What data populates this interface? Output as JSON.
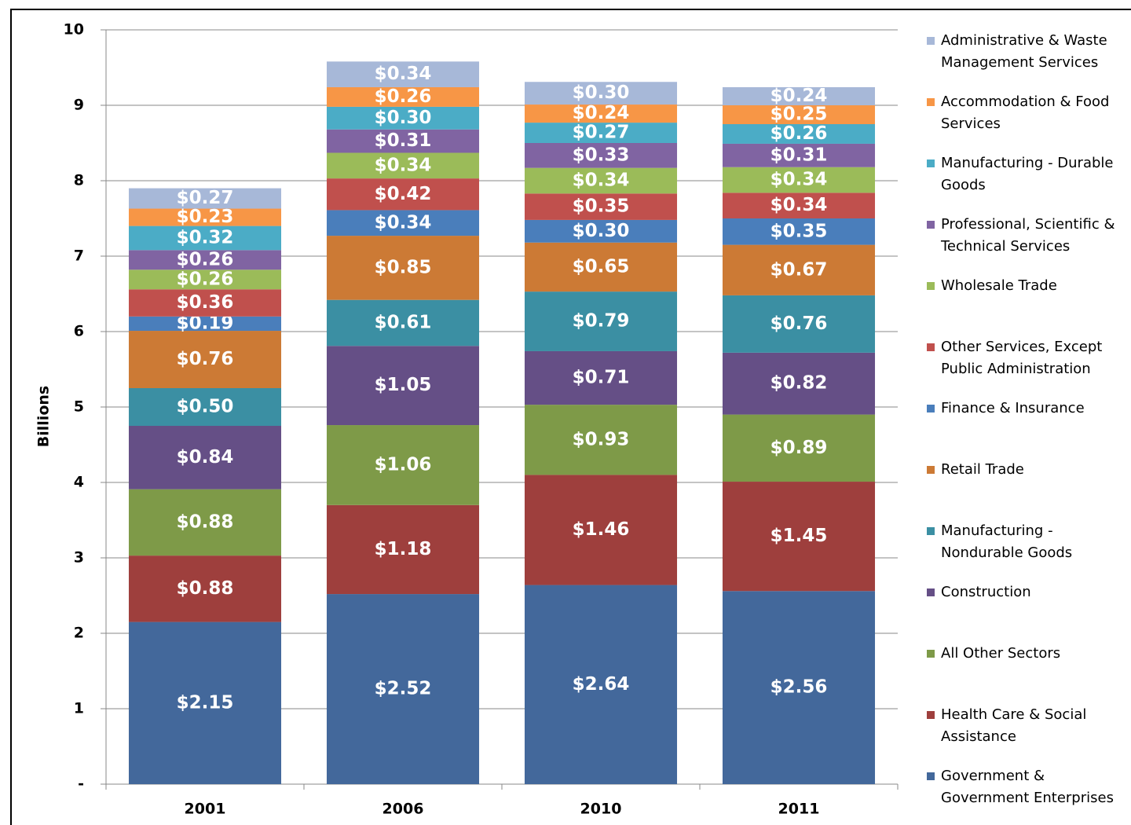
{
  "chart_data": {
    "type": "stacked_bar",
    "y_label": "Billions",
    "categories": [
      "2001",
      "2006",
      "2010",
      "2011"
    ],
    "ylim": [
      0,
      10
    ],
    "yticks": [
      {
        "value": 0,
        "label": "-"
      },
      1,
      2,
      3,
      4,
      5,
      6,
      7,
      8,
      9,
      10
    ],
    "grid": true,
    "series": [
      {
        "name": "Government & Government Enterprises",
        "color": "#43689b",
        "values": [
          2.15,
          2.52,
          2.64,
          2.56
        ],
        "value_labels": [
          "$2.15",
          "$2.52",
          "$2.64",
          "$2.56"
        ]
      },
      {
        "name": "Health Care & Social Assistance",
        "color": "#9e3f3d",
        "values": [
          0.88,
          1.18,
          1.46,
          1.45
        ],
        "value_labels": [
          "$0.88",
          "$1.18",
          "$1.46",
          "$1.45"
        ]
      },
      {
        "name": "All Other Sectors",
        "color": "#7e9a48",
        "values": [
          0.88,
          1.06,
          0.93,
          0.89
        ],
        "value_labels": [
          "$0.88",
          "$1.06",
          "$0.93",
          "$0.89"
        ]
      },
      {
        "name": "Construction",
        "color": "#654f86",
        "values": [
          0.84,
          1.05,
          0.71,
          0.82
        ],
        "value_labels": [
          "$0.84",
          "$1.05",
          "$0.71",
          "$0.82"
        ]
      },
      {
        "name": "Manufacturing - Nondurable Goods",
        "color": "#3b8fa3",
        "values": [
          0.5,
          0.61,
          0.79,
          0.76
        ],
        "value_labels": [
          "$0.50",
          "$0.61",
          "$0.79",
          "$0.76"
        ]
      },
      {
        "name": "Retail Trade",
        "color": "#cc7a35",
        "values": [
          0.76,
          0.85,
          0.65,
          0.67
        ],
        "value_labels": [
          "$0.76",
          "$0.85",
          "$0.65",
          "$0.67"
        ]
      },
      {
        "name": "Finance & Insurance",
        "color": "#4a7ebb",
        "values": [
          0.19,
          0.34,
          0.3,
          0.35
        ],
        "value_labels": [
          "$0.19",
          "$0.34",
          "$0.30",
          "$0.35"
        ]
      },
      {
        "name": "Other Services, Except Public Administration",
        "color": "#c0504d",
        "values": [
          0.36,
          0.42,
          0.35,
          0.34
        ],
        "value_labels": [
          "$0.36",
          "$0.42",
          "$0.35",
          "$0.34"
        ]
      },
      {
        "name": "Wholesale Trade",
        "color": "#9bbb59",
        "values": [
          0.26,
          0.34,
          0.34,
          0.34
        ],
        "value_labels": [
          "$0.26",
          "$0.34",
          "$0.34",
          "$0.34"
        ]
      },
      {
        "name": "Professional, Scientific & Technical Services",
        "color": "#8064a2",
        "values": [
          0.26,
          0.31,
          0.33,
          0.31
        ],
        "value_labels": [
          "$0.26",
          "$0.31",
          "$0.33",
          "$0.31"
        ]
      },
      {
        "name": "Manufacturing - Durable Goods",
        "color": "#4bacc6",
        "values": [
          0.32,
          0.3,
          0.27,
          0.26
        ],
        "value_labels": [
          "$0.32",
          "$0.30",
          "$0.27",
          "$0.26"
        ]
      },
      {
        "name": "Accommodation & Food Services",
        "color": "#f79646",
        "values": [
          0.23,
          0.26,
          0.24,
          0.25
        ],
        "value_labels": [
          "$0.23",
          "$0.26",
          "$0.24",
          "$0.25"
        ]
      },
      {
        "name": "Administrative & Waste Management Services",
        "color": "#a7b8d8",
        "values": [
          0.27,
          0.34,
          0.3,
          0.24
        ],
        "value_labels": [
          "$0.27",
          "$0.34",
          "$0.30",
          "$0.24"
        ]
      }
    ]
  }
}
